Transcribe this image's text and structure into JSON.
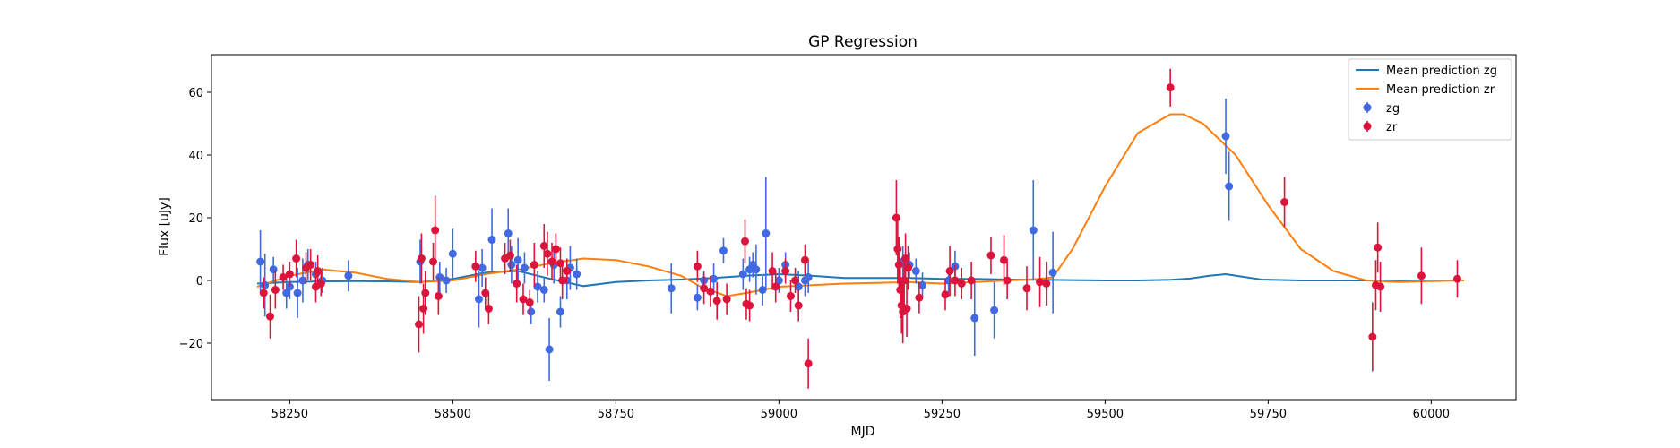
{
  "chart_data": {
    "type": "scatter",
    "title": "GP Regression",
    "xlabel": "MJD",
    "ylabel": "Flux [uJy]",
    "xlim": [
      58130,
      60130
    ],
    "ylim": [
      -38,
      72
    ],
    "x_ticks": [
      58250,
      58500,
      58750,
      59000,
      59250,
      59500,
      59750,
      60000
    ],
    "y_ticks": [
      -20,
      0,
      20,
      40,
      60
    ],
    "grid": false,
    "legend_position": "top-right",
    "lines": [
      {
        "name": "Mean prediction zg",
        "color": "#1f77b4",
        "x": [
          58200,
          58250,
          58300,
          58350,
          58400,
          58450,
          58500,
          58550,
          58600,
          58650,
          58700,
          58750,
          58800,
          58850,
          58900,
          58950,
          59000,
          59050,
          59100,
          59150,
          59200,
          59250,
          59300,
          59350,
          59400,
          59450,
          59500,
          59550,
          59600,
          59630,
          59660,
          59685,
          59710,
          59740,
          59800,
          59900,
          60050
        ],
        "y": [
          -1,
          -0.5,
          -0.3,
          -0.2,
          -0.3,
          -0.5,
          0.5,
          2.5,
          3,
          0.5,
          -1.8,
          -0.5,
          0,
          0.3,
          0.8,
          1.5,
          2,
          1.5,
          0.8,
          0.8,
          0.8,
          0.5,
          0.5,
          0.3,
          0.2,
          0.1,
          0,
          0,
          0.2,
          0.6,
          1.5,
          2,
          1.2,
          0.3,
          0,
          0,
          0
        ]
      },
      {
        "name": "Mean prediction zr",
        "color": "#ff7f0e",
        "x": [
          58200,
          58250,
          58300,
          58350,
          58400,
          58450,
          58500,
          58550,
          58600,
          58650,
          58700,
          58750,
          58800,
          58850,
          58880,
          58920,
          58950,
          59000,
          59050,
          59100,
          59150,
          59200,
          59250,
          59300,
          59350,
          59400,
          59420,
          59450,
          59500,
          59550,
          59600,
          59620,
          59650,
          59700,
          59750,
          59800,
          59850,
          59900,
          59950,
          60000,
          60050
        ],
        "y": [
          -2,
          1.5,
          3.5,
          2.5,
          0.5,
          -0.5,
          0,
          2,
          3.5,
          5.5,
          7,
          6.5,
          4.5,
          1.5,
          -2,
          -5,
          -4,
          -2,
          -1.5,
          -1,
          -0.8,
          -0.5,
          -1,
          -0.5,
          0,
          0.5,
          1,
          10,
          30,
          47,
          53,
          53,
          50,
          40,
          24,
          10,
          3,
          0,
          -0.5,
          -0.2,
          0
        ]
      }
    ],
    "series": [
      {
        "name": "zg",
        "color": "#4169e1",
        "x": [
          58205,
          58212,
          58225,
          58245,
          58250,
          58262,
          58270,
          58278,
          58290,
          58300,
          58340,
          58450,
          58480,
          58490,
          58500,
          58540,
          58545,
          58560,
          58585,
          58590,
          58600,
          58610,
          58620,
          58630,
          58640,
          58648,
          58655,
          58665,
          58675,
          58680,
          58690,
          58835,
          58875,
          58885,
          58900,
          58915,
          58945,
          58955,
          58960,
          58965,
          58975,
          58980,
          59000,
          59010,
          59030,
          59040,
          59045,
          59190,
          59200,
          59210,
          59220,
          59260,
          59270,
          59300,
          59330,
          59390,
          59420,
          59685,
          59690
        ],
        "y": [
          6,
          -1.5,
          3.5,
          -4,
          -2,
          -4,
          0,
          5,
          2,
          0,
          1.5,
          6,
          1,
          0,
          8.5,
          -6,
          4,
          13,
          15,
          5,
          6.5,
          4,
          -10,
          -2,
          -3,
          -22,
          5,
          -10,
          0,
          4,
          2,
          -2.5,
          -5.5,
          0,
          0.5,
          9.5,
          2,
          3.5,
          5,
          3.5,
          -3,
          15,
          0,
          5,
          -2,
          0,
          1,
          6,
          5,
          3,
          -1.5,
          0,
          4.5,
          -12,
          -9.5,
          16,
          2.5,
          46,
          30
        ],
        "err": [
          10,
          10,
          4,
          5,
          4,
          8,
          7,
          5,
          4,
          4,
          5,
          7,
          5,
          4,
          8,
          9,
          6,
          10,
          8,
          6,
          7,
          5,
          4,
          5,
          4,
          10,
          6,
          5,
          6,
          7,
          5,
          8,
          4,
          3,
          5,
          4,
          5,
          4,
          4,
          8,
          5,
          18,
          4,
          4,
          5,
          5,
          5,
          5,
          4,
          4,
          4,
          4,
          5,
          12,
          9,
          16,
          13,
          12,
          11
        ]
      },
      {
        "name": "zr",
        "color": "#dc143c",
        "x": [
          58210,
          58220,
          58228,
          58240,
          58250,
          58260,
          58275,
          58282,
          58290,
          58293,
          58298,
          58448,
          58452,
          58455,
          58458,
          58470,
          58473,
          58478,
          58535,
          58550,
          58555,
          58580,
          58588,
          58598,
          58608,
          58618,
          58625,
          58640,
          58645,
          58652,
          58658,
          58665,
          58668,
          58675,
          58875,
          58885,
          58895,
          58905,
          58920,
          58948,
          58950,
          58955,
          58990,
          58995,
          59010,
          59018,
          59025,
          59030,
          59040,
          59045,
          59180,
          59182,
          59184,
          59186,
          59188,
          59190,
          59192,
          59194,
          59196,
          59198,
          59215,
          59255,
          59262,
          59270,
          59280,
          59295,
          59325,
          59345,
          59350,
          59380,
          59400,
          59410,
          59600,
          59775,
          59910,
          59915,
          59918,
          59922,
          59985,
          60040
        ],
        "y": [
          -4,
          -11.5,
          -3,
          1,
          2,
          7,
          4,
          5,
          -2,
          3,
          -1,
          -14,
          7,
          -9,
          -4,
          6,
          16,
          -5,
          4.5,
          -4,
          -9,
          7,
          8,
          -1,
          -6,
          -7,
          5,
          11,
          8.5,
          6,
          10,
          5.5,
          0,
          3,
          4.5,
          -2.5,
          -3.5,
          -6.5,
          -6,
          12.5,
          -7.5,
          -8,
          3,
          -2,
          3,
          -5,
          0,
          -8,
          6.5,
          -26.5,
          20,
          10,
          5,
          -3,
          -8,
          -10,
          0,
          7,
          -9,
          4,
          -5.5,
          -4.5,
          3,
          0,
          -1,
          0,
          8,
          6.5,
          0,
          -2.5,
          -0.5,
          -1,
          61.5,
          25,
          -18,
          -1.5,
          10.5,
          -2,
          1.5,
          0.5
        ],
        "err": [
          5,
          7,
          6,
          4,
          4,
          6,
          5,
          5,
          5,
          5,
          4,
          9,
          8,
          8,
          7,
          6,
          11,
          6,
          5,
          5,
          5,
          5,
          5,
          6,
          5,
          4,
          7,
          7,
          7,
          6,
          5,
          5,
          6,
          4,
          5,
          5,
          5,
          6,
          5,
          7,
          5,
          5,
          6,
          5,
          4,
          5,
          4,
          5,
          5,
          8,
          12,
          11,
          9,
          9,
          9,
          10,
          8,
          8,
          9,
          7,
          5,
          5,
          8,
          5,
          5,
          6,
          6,
          8,
          6,
          7,
          8,
          7,
          6,
          8,
          11,
          8,
          8,
          8,
          9,
          6
        ]
      }
    ]
  }
}
